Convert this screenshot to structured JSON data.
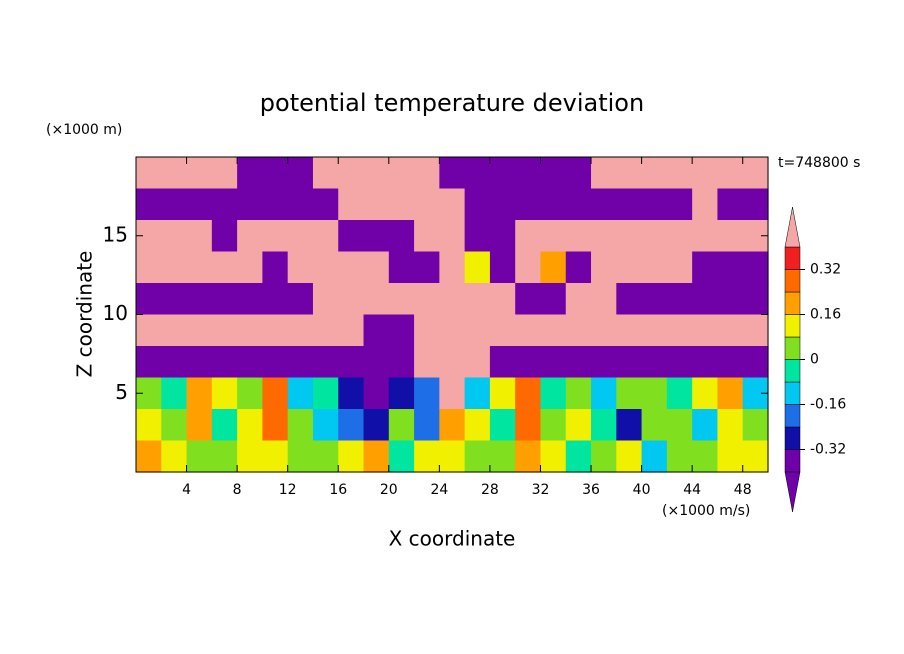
{
  "chart_data": {
    "type": "contour",
    "title": "potential temperature deviation",
    "x_label": "X coordinate",
    "y_label": "Z coordinate",
    "x_unit": "(×1000 m/s)",
    "y_unit": "(×1000 m)",
    "time_label": "t=748800 s",
    "xlim": [
      0,
      50
    ],
    "ylim": [
      0,
      20
    ],
    "xticks": [
      4,
      8,
      12,
      16,
      20,
      24,
      28,
      32,
      36,
      40,
      44,
      48
    ],
    "yticks": [
      5,
      10,
      15
    ],
    "levels": [
      -0.4,
      -0.32,
      -0.24,
      -0.16,
      -0.08,
      0,
      0.08,
      0.16,
      0.24,
      0.32,
      0.4
    ],
    "colors": [
      "#7000a8",
      "#7000a8",
      "#1010a8",
      "#1e6ee8",
      "#00c8f0",
      "#00e6a0",
      "#80e020",
      "#f0f000",
      "#ffa000",
      "#ff6a00",
      "#f02020",
      "#f5a6a6"
    ],
    "colorbar_ticks": [
      -0.32,
      -0.16,
      0,
      0.16,
      0.32
    ],
    "z": [
      [
        0.5,
        0.5,
        0.5,
        0.5,
        -0.45,
        -0.45,
        -0.45,
        0.5,
        0.5,
        0.5,
        0.5,
        0.5,
        -0.45,
        -0.45,
        -0.45,
        -0.45,
        -0.45,
        -0.45,
        0.5,
        0.5,
        0.5,
        0.5,
        0.5,
        0.5,
        0.5
      ],
      [
        -0.45,
        -0.45,
        -0.45,
        -0.45,
        -0.45,
        -0.45,
        -0.45,
        -0.45,
        0.5,
        0.5,
        0.5,
        0.5,
        0.5,
        -0.45,
        -0.45,
        -0.45,
        -0.45,
        -0.45,
        -0.45,
        -0.45,
        -0.45,
        -0.45,
        0.5,
        -0.45,
        -0.45
      ],
      [
        0.5,
        0.5,
        0.5,
        -0.45,
        0.5,
        0.5,
        0.5,
        0.5,
        -0.45,
        -0.45,
        -0.45,
        0.5,
        0.5,
        -0.45,
        -0.45,
        0.5,
        0.5,
        0.5,
        0.5,
        0.5,
        0.5,
        0.5,
        0.5,
        0.5,
        0.5
      ],
      [
        0.5,
        0.5,
        0.5,
        0.5,
        0.5,
        -0.45,
        0.5,
        0.5,
        0.5,
        0.5,
        -0.45,
        -0.45,
        0.5,
        0.1,
        -0.45,
        0.5,
        0.2,
        -0.45,
        0.5,
        0.5,
        0.5,
        0.5,
        -0.45,
        -0.45,
        -0.45
      ],
      [
        -0.45,
        -0.45,
        -0.45,
        -0.45,
        -0.45,
        -0.45,
        -0.45,
        0.5,
        0.5,
        0.5,
        0.5,
        0.5,
        0.5,
        0.5,
        0.5,
        -0.45,
        -0.45,
        0.5,
        0.5,
        -0.45,
        -0.45,
        -0.45,
        -0.45,
        -0.45,
        -0.45
      ],
      [
        0.5,
        0.5,
        0.5,
        0.5,
        0.5,
        0.5,
        0.5,
        0.5,
        0.5,
        -0.45,
        -0.45,
        0.5,
        0.5,
        0.5,
        0.5,
        0.5,
        0.5,
        0.5,
        0.5,
        0.5,
        0.5,
        0.5,
        0.5,
        0.5,
        0.5
      ],
      [
        -0.45,
        -0.45,
        -0.45,
        -0.45,
        -0.45,
        -0.45,
        -0.45,
        -0.45,
        -0.45,
        -0.45,
        -0.45,
        0.5,
        0.5,
        0.5,
        -0.45,
        -0.45,
        -0.45,
        -0.45,
        -0.45,
        -0.45,
        -0.45,
        -0.45,
        -0.45,
        -0.45,
        -0.45
      ],
      [
        0.05,
        -0.05,
        0.2,
        0.1,
        0.0,
        0.3,
        -0.1,
        -0.05,
        -0.3,
        -0.35,
        -0.25,
        -0.2,
        0.5,
        -0.1,
        0.1,
        0.25,
        -0.05,
        0.0,
        -0.1,
        0.05,
        0.0,
        -0.05,
        0.1,
        0.2,
        -0.1
      ],
      [
        0.15,
        0.05,
        0.2,
        -0.05,
        0.1,
        0.3,
        0.0,
        -0.1,
        -0.2,
        -0.25,
        0.05,
        -0.2,
        0.2,
        0.1,
        -0.05,
        0.3,
        0.0,
        0.1,
        -0.05,
        -0.25,
        0.0,
        0.05,
        -0.1,
        0.15,
        0.0
      ],
      [
        0.2,
        0.1,
        0.0,
        0.05,
        0.1,
        0.15,
        0.0,
        0.05,
        0.1,
        0.2,
        -0.05,
        0.15,
        0.1,
        0.0,
        0.05,
        0.2,
        0.1,
        -0.05,
        0.05,
        0.1,
        -0.1,
        0.05,
        0.0,
        0.15,
        0.1
      ]
    ]
  }
}
